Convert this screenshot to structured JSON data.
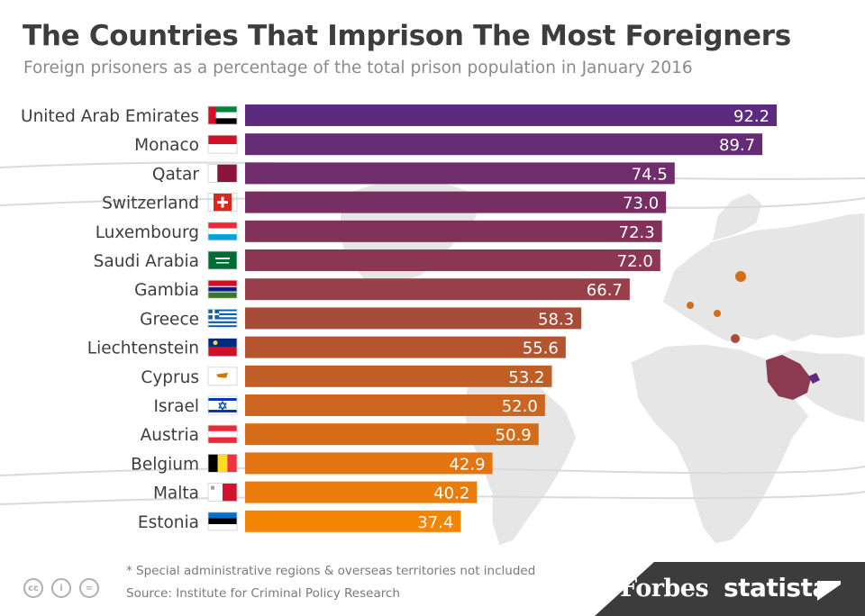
{
  "header": {
    "title": "The Countries That Imprison The Most Foreigners",
    "subtitle": "Foreign prisoners as a percentage of the total prison population in January 2016"
  },
  "footer": {
    "note": "* Special administrative regions & overseas territories not included",
    "source": "Source: Institute for Criminal Policy Research",
    "cc_icons": [
      "cc-icon",
      "by-icon",
      "nd-icon"
    ],
    "brand_left": "Forbes",
    "brand_right": "statista"
  },
  "chart_data": {
    "type": "bar",
    "orientation": "horizontal",
    "title": "The Countries That Imprison The Most Foreigners",
    "subtitle": "Foreign prisoners as a percentage of the total prison population in January 2016",
    "categories": [
      "United Arab Emirates",
      "Monaco",
      "Qatar",
      "Switzerland",
      "Luxembourg",
      "Saudi Arabia",
      "Gambia",
      "Greece",
      "Liechtenstein",
      "Cyprus",
      "Israel",
      "Austria",
      "Belgium",
      "Malta",
      "Estonia"
    ],
    "values": [
      92.2,
      89.7,
      74.5,
      73.0,
      72.3,
      72.0,
      66.7,
      58.3,
      55.6,
      53.2,
      52.0,
      50.9,
      42.9,
      40.2,
      37.4
    ],
    "value_labels": [
      "92.2",
      "89.7",
      "74.5",
      "73.0",
      "72.3",
      "72.0",
      "66.7",
      "58.3",
      "55.6",
      "53.2",
      "52.0",
      "50.9",
      "42.9",
      "40.2",
      "37.4"
    ],
    "bar_colors": [
      "#5c2a7e",
      "#652b75",
      "#6f2d6b",
      "#772f63",
      "#81325a",
      "#8b3652",
      "#98404a",
      "#a84c3a",
      "#b45530",
      "#c05e27",
      "#cb6520",
      "#d56d18",
      "#e27412",
      "#ea7c0c",
      "#f38505"
    ],
    "flag_icons": [
      "uae-flag-icon",
      "monaco-flag-icon",
      "qatar-flag-icon",
      "switzerland-flag-icon",
      "luxembourg-flag-icon",
      "saudi-arabia-flag-icon",
      "gambia-flag-icon",
      "greece-flag-icon",
      "liechtenstein-flag-icon",
      "cyprus-flag-icon",
      "israel-flag-icon",
      "austria-flag-icon",
      "belgium-flag-icon",
      "malta-flag-icon",
      "estonia-flag-icon"
    ],
    "xlim": [
      0,
      100
    ],
    "grid": false,
    "legend": "none"
  }
}
